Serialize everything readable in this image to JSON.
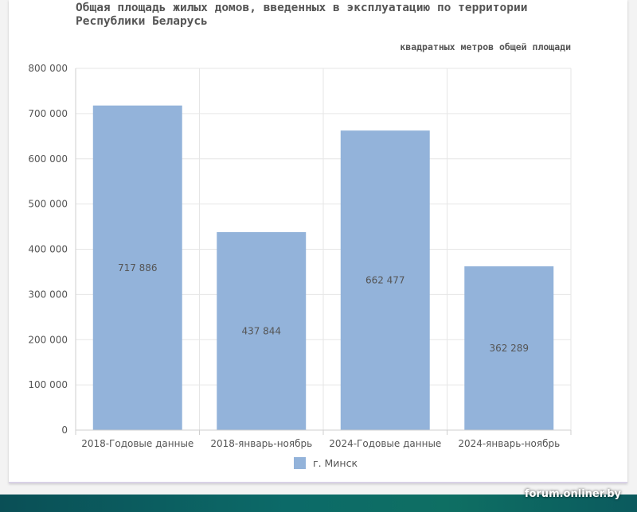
{
  "chart_data": {
    "type": "bar",
    "title": "Общая площадь жилых домов, введенных в эксплуатацию по территории Республики Беларусь",
    "subtitle": "квадратных метров общей площади",
    "categories": [
      "2018-Годовые данные",
      "2018-январь-ноябрь",
      "2024-Годовые данные",
      "2024-январь-ноябрь"
    ],
    "series": [
      {
        "name": "г. Минск",
        "values": [
          717886,
          437844,
          662477,
          362289
        ],
        "value_labels": [
          "717 886",
          "437 844",
          "662 477",
          "362 289"
        ],
        "color": "#93b3da"
      }
    ],
    "ylim": [
      0,
      800000
    ],
    "yticks": [
      0,
      100000,
      200000,
      300000,
      400000,
      500000,
      600000,
      700000,
      800000
    ],
    "ytick_labels": [
      "0",
      "100 000",
      "200 000",
      "300 000",
      "400 000",
      "500 000",
      "600 000",
      "700 000",
      "800 000"
    ],
    "grid": true,
    "legend_position": "bottom"
  },
  "watermark": "forum.onliner.by"
}
